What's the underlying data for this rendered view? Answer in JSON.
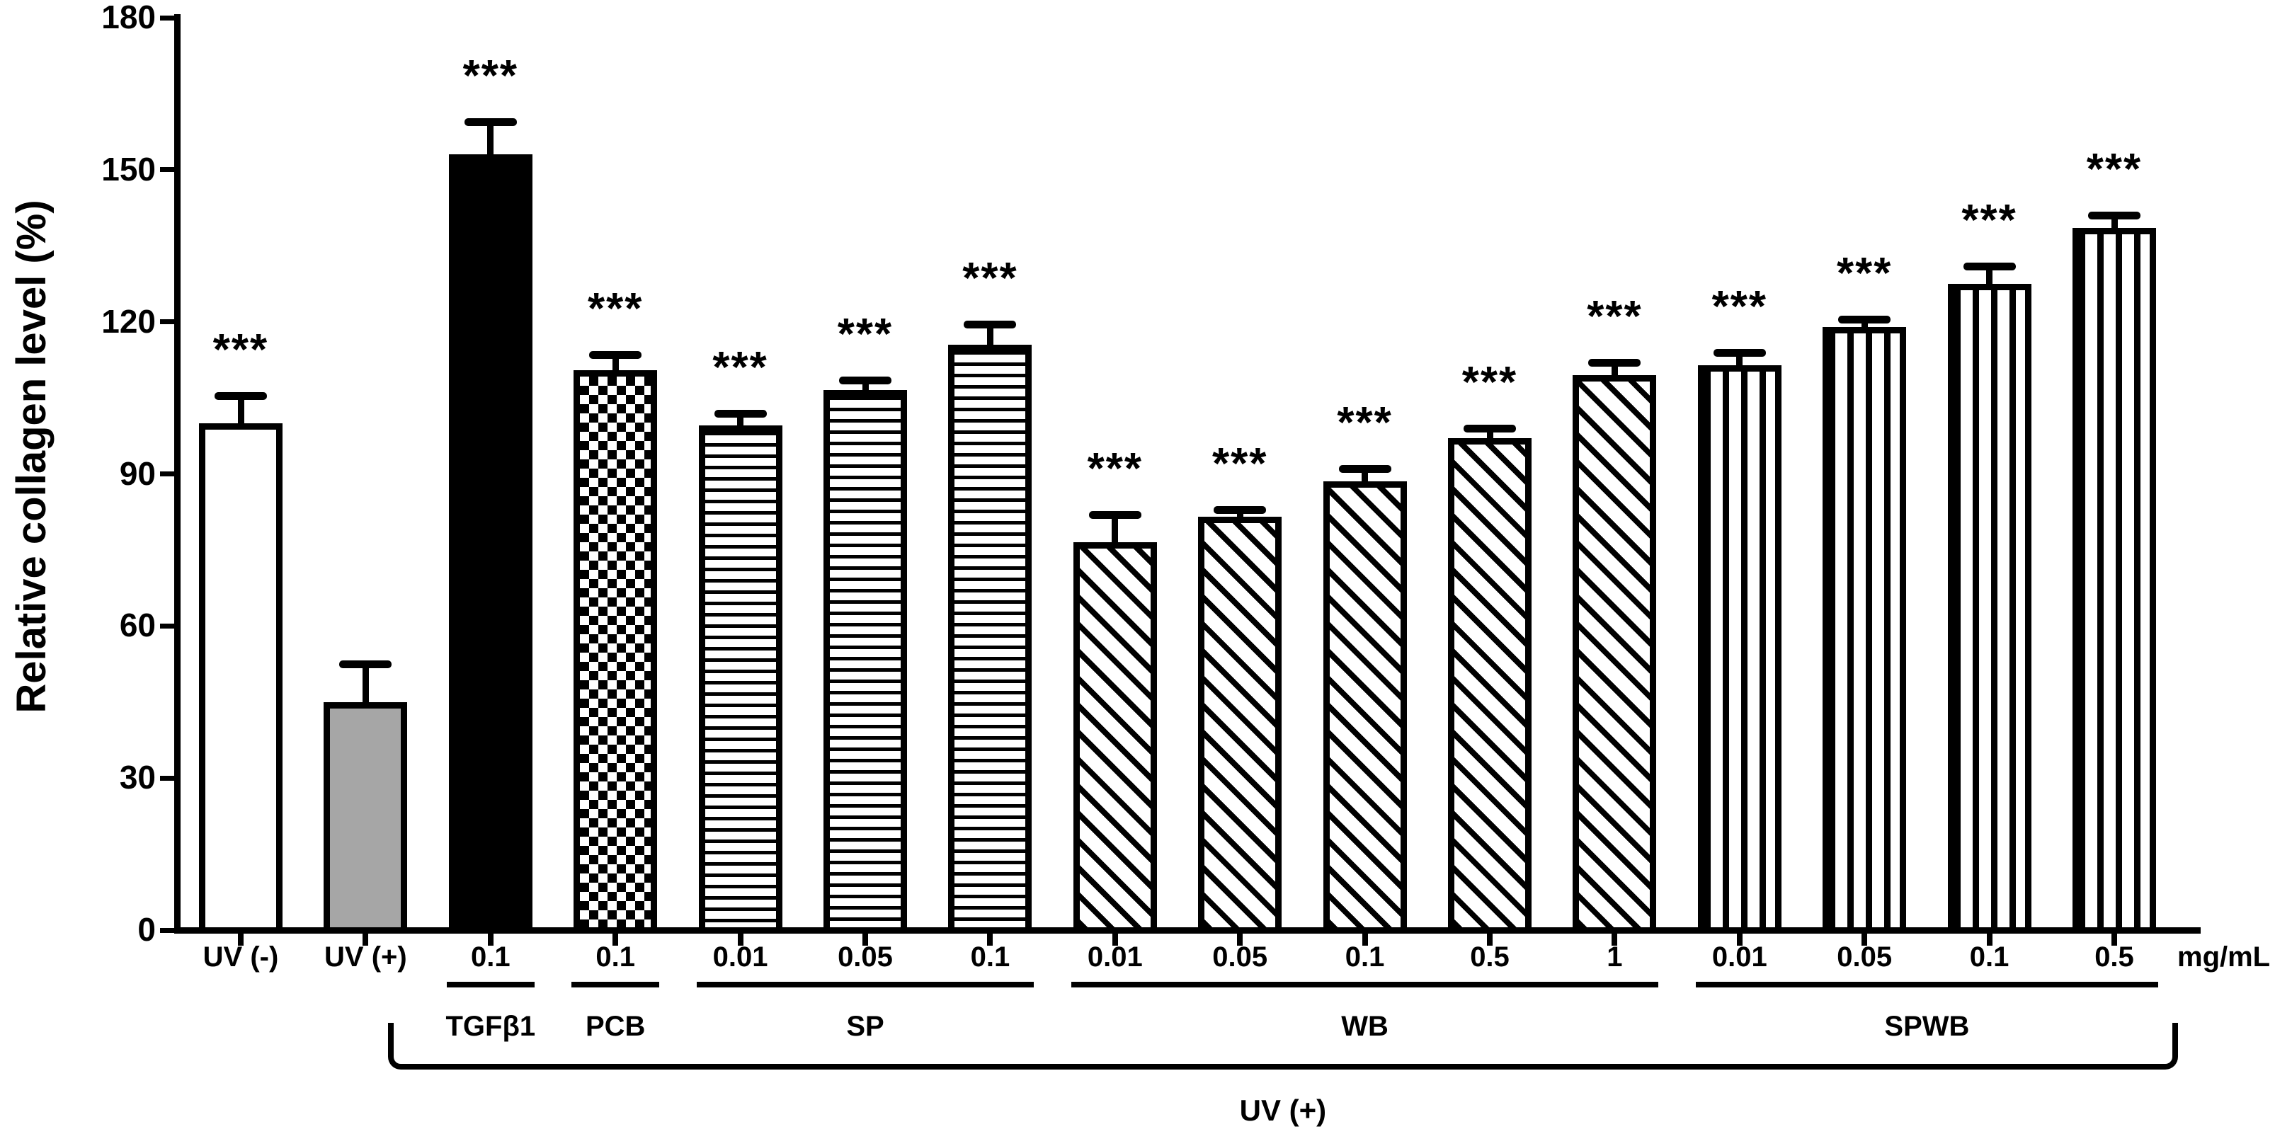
{
  "figure": {
    "background": "#ffffff",
    "ink_color": "#000000",
    "gray_bar_color": "#a6a6a6",
    "y_axis_title": "Relative collagen level (%)",
    "unit_label": "mg/mL",
    "bracket_label": "UV (+)"
  },
  "chart_data": {
    "type": "bar",
    "title": "",
    "ylabel": "Relative collagen level (%)",
    "xlabel": "",
    "x_unit_label": "mg/mL",
    "ylim": [
      0,
      180
    ],
    "yticks": [
      0,
      30,
      60,
      90,
      120,
      150,
      180
    ],
    "grid": false,
    "legend_position": "none",
    "categories": [
      "UV (-)",
      "UV (+)",
      "0.1",
      "0.1",
      "0.01",
      "0.05",
      "0.1",
      "0.01",
      "0.05",
      "0.1",
      "0.5",
      "1",
      "0.01",
      "0.05",
      "0.1",
      "0.5"
    ],
    "values": [
      100,
      45,
      153,
      110.5,
      99.5,
      106.5,
      115.5,
      76.5,
      81.5,
      88.5,
      97,
      109.5,
      111.5,
      119,
      127.5,
      138.5
    ],
    "errors": [
      5.5,
      7.5,
      6.5,
      3,
      2.5,
      2,
      4,
      5.5,
      1.5,
      2.5,
      2,
      2.5,
      2.5,
      1.5,
      3.5,
      2.5
    ],
    "significance": [
      "***",
      "",
      "***",
      "***",
      "***",
      "***",
      "***",
      "***",
      "***",
      "***",
      "***",
      "***",
      "***",
      "***",
      "***",
      "***"
    ],
    "bar_patterns": [
      "solid-white",
      "solid-gray",
      "solid-black",
      "checkerboard",
      "horizontal-stripes",
      "horizontal-stripes",
      "horizontal-stripes",
      "diagonal-stripes",
      "diagonal-stripes",
      "diagonal-stripes",
      "diagonal-stripes",
      "diagonal-stripes",
      "vertical-stripes",
      "vertical-stripes",
      "vertical-stripes",
      "vertical-stripes"
    ],
    "groups": [
      {
        "label": "TGFβ1",
        "from_bar": 2,
        "to_bar": 2
      },
      {
        "label": "PCB",
        "from_bar": 3,
        "to_bar": 3
      },
      {
        "label": "SP",
        "from_bar": 4,
        "to_bar": 6
      },
      {
        "label": "WB",
        "from_bar": 7,
        "to_bar": 11
      },
      {
        "label": "SPWB",
        "from_bar": 12,
        "to_bar": 15
      }
    ],
    "bracket": {
      "label": "UV (+)",
      "from_bar": 2,
      "to_bar": 15
    }
  }
}
